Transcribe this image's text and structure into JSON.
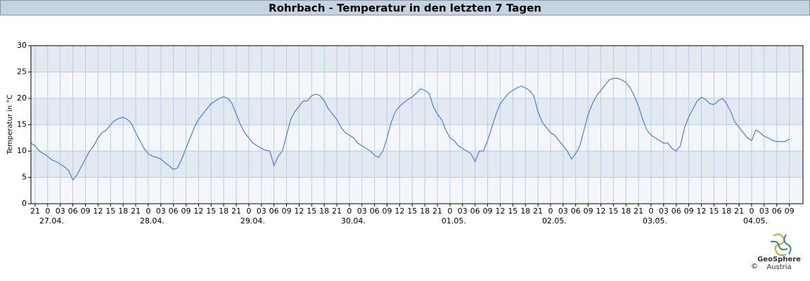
{
  "chart_data": {
    "type": "line",
    "title": "Rohrbach - Temperatur in den letzten 7 Tagen",
    "ylabel": "Temperatur in °C",
    "ylim": [
      0,
      30
    ],
    "yticks": [
      0,
      5,
      10,
      15,
      20,
      25,
      30
    ],
    "xlim": [
      -4,
      180.25
    ],
    "grid": true,
    "xticks": [
      {
        "value": -3,
        "label": "21"
      },
      {
        "value": 0,
        "label": "0"
      },
      {
        "value": 3,
        "label": "03"
      },
      {
        "value": 6,
        "label": "06"
      },
      {
        "value": 9,
        "label": "09"
      },
      {
        "value": 12,
        "label": "12"
      },
      {
        "value": 15,
        "label": "15"
      },
      {
        "value": 18,
        "label": "18"
      },
      {
        "value": 21,
        "label": "21"
      },
      {
        "value": 24,
        "label": "0"
      },
      {
        "value": 27,
        "label": "03"
      },
      {
        "value": 30,
        "label": "06"
      },
      {
        "value": 33,
        "label": "09"
      },
      {
        "value": 36,
        "label": "12"
      },
      {
        "value": 39,
        "label": "15"
      },
      {
        "value": 42,
        "label": "18"
      },
      {
        "value": 45,
        "label": "21"
      },
      {
        "value": 48,
        "label": "0"
      },
      {
        "value": 51,
        "label": "03"
      },
      {
        "value": 54,
        "label": "06"
      },
      {
        "value": 57,
        "label": "09"
      },
      {
        "value": 60,
        "label": "12"
      },
      {
        "value": 63,
        "label": "15"
      },
      {
        "value": 66,
        "label": "18"
      },
      {
        "value": 69,
        "label": "21"
      },
      {
        "value": 72,
        "label": "0"
      },
      {
        "value": 75,
        "label": "03"
      },
      {
        "value": 78,
        "label": "06"
      },
      {
        "value": 81,
        "label": "09"
      },
      {
        "value": 84,
        "label": "12"
      },
      {
        "value": 87,
        "label": "15"
      },
      {
        "value": 90,
        "label": "18"
      },
      {
        "value": 93,
        "label": "21"
      },
      {
        "value": 96,
        "label": "0"
      },
      {
        "value": 99,
        "label": "03"
      },
      {
        "value": 102,
        "label": "06"
      },
      {
        "value": 105,
        "label": "09"
      },
      {
        "value": 108,
        "label": "12"
      },
      {
        "value": 111,
        "label": "15"
      },
      {
        "value": 114,
        "label": "18"
      },
      {
        "value": 117,
        "label": "21"
      },
      {
        "value": 120,
        "label": "0"
      },
      {
        "value": 123,
        "label": "03"
      },
      {
        "value": 126,
        "label": "06"
      },
      {
        "value": 129,
        "label": "09"
      },
      {
        "value": 132,
        "label": "12"
      },
      {
        "value": 135,
        "label": "15"
      },
      {
        "value": 138,
        "label": "18"
      },
      {
        "value": 141,
        "label": "21"
      },
      {
        "value": 144,
        "label": "0"
      },
      {
        "value": 147,
        "label": "03"
      },
      {
        "value": 150,
        "label": "06"
      },
      {
        "value": 153,
        "label": "09"
      },
      {
        "value": 156,
        "label": "12"
      },
      {
        "value": 159,
        "label": "15"
      },
      {
        "value": 162,
        "label": "18"
      },
      {
        "value": 165,
        "label": "21"
      },
      {
        "value": 168,
        "label": "0"
      },
      {
        "value": 171,
        "label": "03"
      },
      {
        "value": 174,
        "label": "06"
      },
      {
        "value": 177,
        "label": "09"
      }
    ],
    "date_labels": [
      {
        "value": 0,
        "label": "27.04."
      },
      {
        "value": 24,
        "label": "28.04."
      },
      {
        "value": 48,
        "label": "29.04."
      },
      {
        "value": 72,
        "label": "30.04."
      },
      {
        "value": 96,
        "label": "01.05."
      },
      {
        "value": 120,
        "label": "02.05."
      },
      {
        "value": 144,
        "label": "03.05."
      },
      {
        "value": 168,
        "label": "04.05."
      }
    ],
    "x": [
      -4,
      -3,
      -2,
      -1,
      0,
      1,
      2,
      3,
      4,
      5,
      6,
      7,
      8,
      9,
      10,
      11,
      12,
      13,
      14,
      15,
      16,
      17,
      18,
      19,
      20,
      21,
      22,
      23,
      24,
      25,
      26,
      27,
      28,
      29,
      30,
      31,
      32,
      33,
      34,
      35,
      36,
      37,
      38,
      39,
      40,
      41,
      42,
      43,
      44,
      45,
      46,
      47,
      48,
      49,
      50,
      51,
      52,
      53,
      54,
      55,
      56,
      57,
      58,
      59,
      60,
      61,
      62,
      63,
      64,
      65,
      66,
      67,
      68,
      69,
      70,
      71,
      72,
      73,
      74,
      75,
      76,
      77,
      78,
      79,
      80,
      81,
      82,
      83,
      84,
      85,
      86,
      87,
      88,
      89,
      90,
      91,
      92,
      93,
      94,
      95,
      96,
      97,
      98,
      99,
      100,
      101,
      102,
      103,
      104,
      105,
      106,
      107,
      108,
      109,
      110,
      111,
      112,
      113,
      114,
      115,
      116,
      117,
      118,
      119,
      120,
      121,
      122,
      123,
      124,
      125,
      126,
      127,
      128,
      129,
      130,
      131,
      132,
      133,
      134,
      135,
      136,
      137,
      138,
      139,
      140,
      141,
      142,
      143,
      144,
      145,
      146,
      147,
      148,
      149,
      150,
      151,
      152,
      153,
      154,
      155,
      156,
      157,
      158,
      159,
      160,
      161,
      162,
      163,
      164,
      165,
      166,
      167,
      168,
      169,
      170,
      171,
      172,
      173,
      174,
      175,
      176,
      177
    ],
    "series": [
      {
        "color": "#4a7fd8",
        "values": [
          11.5,
          11,
          10,
          9.5,
          9,
          8.3,
          8,
          7.5,
          7,
          6.3,
          4.5,
          5.5,
          7,
          8.5,
          10,
          11,
          12.5,
          13.5,
          14,
          15,
          15.8,
          16.2,
          16.4,
          16,
          15.2,
          13.5,
          12,
          10.5,
          9.5,
          9,
          8.8,
          8.5,
          7.8,
          7.2,
          6.5,
          6.8,
          8.5,
          10.5,
          12.5,
          14.5,
          16,
          17,
          18,
          19,
          19.5,
          20,
          20.3,
          20,
          19,
          17,
          15,
          13.5,
          12.5,
          11.5,
          11,
          10.5,
          10.2,
          10,
          7.2,
          9,
          10,
          13,
          16,
          17.5,
          18.5,
          19.5,
          19.5,
          20.5,
          20.8,
          20.5,
          19.5,
          18,
          17,
          16,
          14.5,
          13.5,
          13,
          12.5,
          11.5,
          11,
          10.5,
          10,
          9.2,
          8.8,
          10,
          12.5,
          15.5,
          17.5,
          18.5,
          19.2,
          19.8,
          20.3,
          21,
          21.8,
          21.5,
          21,
          18.5,
          17,
          16,
          14,
          12.5,
          12,
          11,
          10.5,
          10,
          9.5,
          8,
          10,
          10,
          12,
          14.5,
          17,
          19,
          20,
          21,
          21.5,
          22,
          22.3,
          22,
          21.5,
          20.5,
          17.5,
          15.5,
          14.5,
          13.5,
          13,
          12,
          11,
          10,
          8.5,
          9.5,
          11,
          14,
          17,
          19,
          20.5,
          21.5,
          22.5,
          23.5,
          23.8,
          23.8,
          23.5,
          23,
          22,
          20.5,
          18.5,
          16,
          14,
          13,
          12.5,
          12,
          11.5,
          11.5,
          10.5,
          10,
          11,
          14.5,
          16.5,
          18,
          19.5,
          20.2,
          19.8,
          19,
          18.8,
          19.5,
          20,
          19,
          17.5,
          15.5,
          14.5,
          13.5,
          12.5,
          12,
          14,
          13.5,
          12.8,
          12.5,
          12,
          11.8,
          11.8,
          11.8,
          12.3
        ]
      }
    ]
  },
  "branding": {
    "name": "GeoSphere",
    "sub": "Austria",
    "copyright": "©"
  }
}
